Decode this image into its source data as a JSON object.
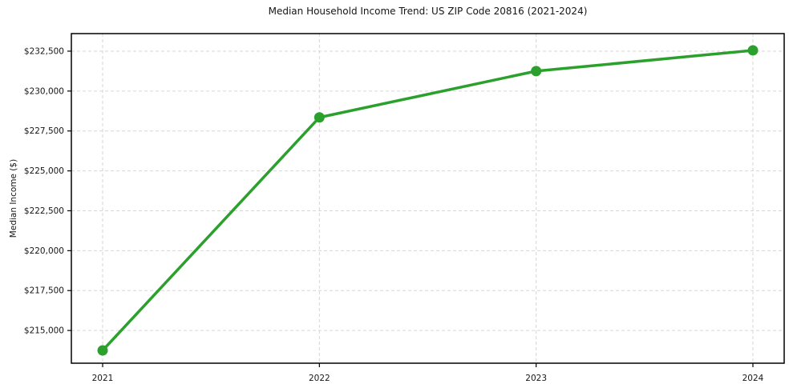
{
  "title": "Median Household Income Trend: US ZIP Code 20816 (2021-2024)",
  "chart_data": {
    "type": "line",
    "title": "Median Household Income Trend: US ZIP Code 20816 (2021-2024)",
    "xlabel": "",
    "ylabel": "Median Income ($)",
    "x": [
      2021,
      2022,
      2023,
      2024
    ],
    "xtick_labels": [
      "2021",
      "2022",
      "2023",
      "2024"
    ],
    "series": [
      {
        "name": "Median Household Income",
        "values": [
          213750,
          228350,
          231250,
          232550
        ]
      }
    ],
    "yticks": [
      215000,
      217500,
      220000,
      222500,
      225000,
      227500,
      230000,
      232500
    ],
    "ytick_labels": [
      "$215,000",
      "$217,500",
      "$220,000",
      "$222,500",
      "$225,000",
      "$227,500",
      "$230,000",
      "$232,500"
    ],
    "ylim": [
      212950,
      233600
    ],
    "grid": true,
    "grid_style": "dashed",
    "legend": "none",
    "colors": {
      "line": "#2ca02c",
      "marker": "#2ca02c",
      "grid": "#d6d6d6",
      "spine": "#000000",
      "text": "#151515",
      "background": "#ffffff"
    }
  }
}
